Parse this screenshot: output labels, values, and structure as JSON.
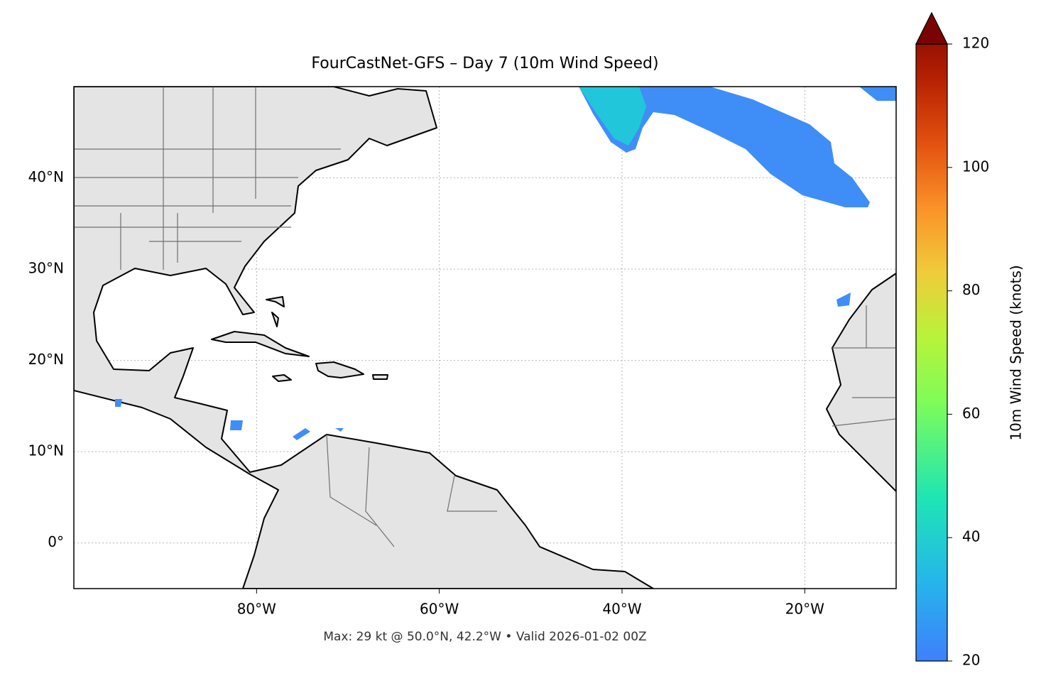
{
  "chart_data": {
    "type": "map",
    "title": "FourCastNet-GFS – Day 7 (10m Wind Speed)",
    "xlim": [
      -100,
      -10
    ],
    "ylim": [
      -5,
      50
    ],
    "xticks": [
      {
        "value": -80,
        "label": "80°W"
      },
      {
        "value": -60,
        "label": "60°W"
      },
      {
        "value": -40,
        "label": "40°W"
      },
      {
        "value": -20,
        "label": "20°W"
      }
    ],
    "yticks": [
      {
        "value": 0,
        "label": "0°"
      },
      {
        "value": 10,
        "label": "10°N"
      },
      {
        "value": 20,
        "label": "20°N"
      },
      {
        "value": 30,
        "label": "30°N"
      },
      {
        "value": 40,
        "label": "40°N"
      }
    ],
    "grid": true,
    "colorbar": {
      "label": "10m Wind Speed (knots)",
      "lim": [
        20,
        120
      ],
      "ticks": [
        20,
        40,
        60,
        80,
        100,
        120
      ]
    },
    "footnote": "Max: 29 kt @ 50.0°N, 42.2°W • Valid 2026-01-02 00Z"
  }
}
